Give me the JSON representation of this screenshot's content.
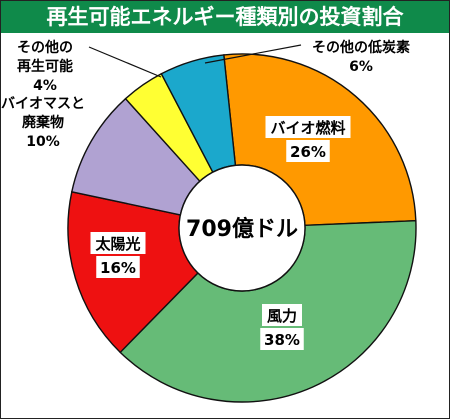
{
  "chart_data": {
    "type": "pie",
    "title": "再生可能エネルギー種類別の投資割合",
    "center_label": "709億ドル",
    "categories": [
      "バイオ燃料",
      "風力",
      "太陽光",
      "バイオマスと廃棄物",
      "その他の再生可能",
      "その他の低炭素"
    ],
    "slices": [
      {
        "line1": "バイオ燃料",
        "line2": "",
        "percent_label": "26%",
        "value": 26,
        "color": "#ff9900"
      },
      {
        "line1": "風力",
        "line2": "",
        "percent_label": "38%",
        "value": 38,
        "color": "#66bb77"
      },
      {
        "line1": "太陽光",
        "line2": "",
        "percent_label": "16%",
        "value": 16,
        "color": "#ee1111"
      },
      {
        "line1": "バイオマスと",
        "line2": "廃棄物",
        "percent_label": "10%",
        "value": 10,
        "color": "#b0a2d2"
      },
      {
        "line1": "その他の",
        "line2": "再生可能",
        "percent_label": "4%",
        "value": 4,
        "color": "#ffff33"
      },
      {
        "line1": "その他の低炭素",
        "line2": "",
        "percent_label": "6%",
        "value": 6,
        "color": "#1ba8cc"
      }
    ]
  }
}
